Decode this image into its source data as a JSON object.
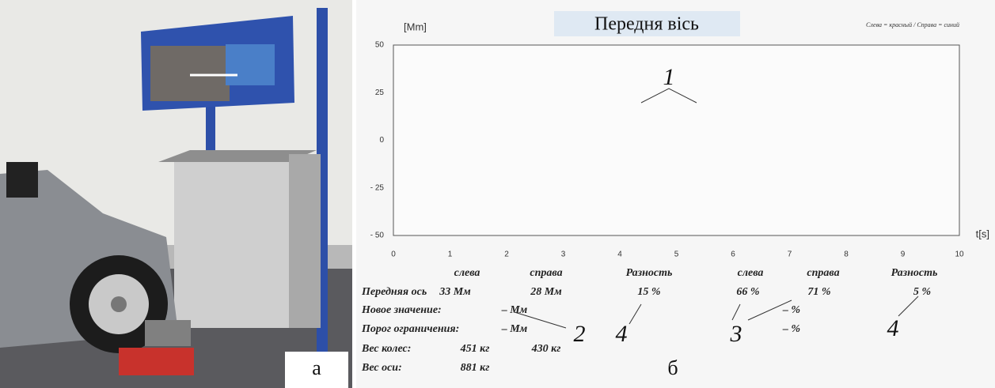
{
  "photo": {
    "label": "а"
  },
  "chart": {
    "label": "б",
    "title": "Передня вісь",
    "y_label": "[Mm]",
    "x_label": "t[s]",
    "legend": "Слева = красный / Справа = синий",
    "xlim": [
      0,
      10
    ],
    "ylim": [
      -50,
      50
    ],
    "xticks": [
      0,
      1,
      2,
      3,
      4,
      5,
      6,
      7,
      8,
      9,
      10
    ],
    "yticks": [
      50,
      25,
      0,
      {
        "value": -25,
        "label": "- 25"
      },
      {
        "value": -50,
        "label": "- 50"
      }
    ],
    "callouts": [
      "1",
      "2",
      "4",
      "3",
      "4"
    ]
  },
  "table": {
    "column_headers": [
      "слева",
      "справа",
      "Разность",
      "слева",
      "справа",
      "Разность"
    ],
    "rows": [
      {
        "label": "Передняя ось",
        "cells": [
          "33 Мм",
          "28 Мм",
          "15 %",
          "66 %",
          "71 %",
          "5 %"
        ]
      },
      {
        "label": "Новое значение:",
        "cells": [
          "– Мм",
          "– %"
        ]
      },
      {
        "label": "Порог ограничения:",
        "cells": [
          "– Мм",
          "– %"
        ]
      },
      {
        "label": "Вес колес:",
        "cells": [
          "451 кг",
          "430 кг"
        ]
      },
      {
        "label": "Вес оси:",
        "cells": [
          "881 кг"
        ]
      }
    ]
  }
}
